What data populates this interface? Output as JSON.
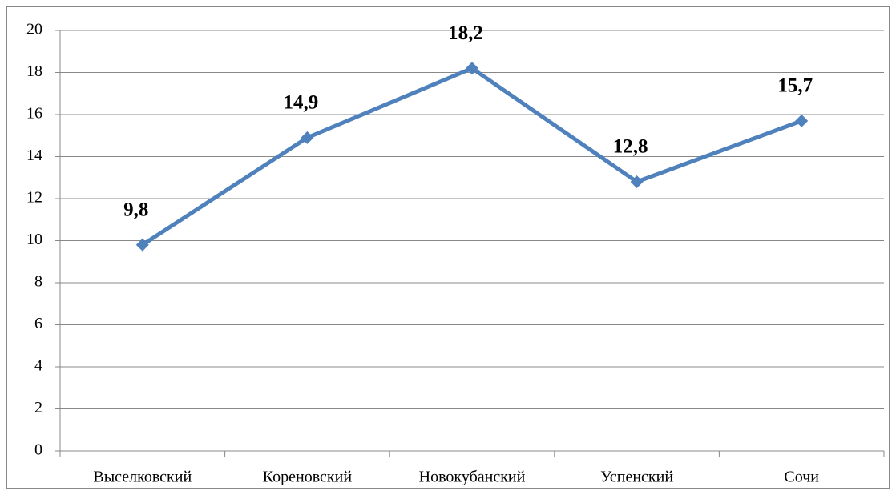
{
  "chart_data": {
    "type": "line",
    "categories": [
      "Выселковский",
      "Кореновский",
      "Новокубанский",
      "Успенский",
      "Сочи"
    ],
    "series": [
      {
        "color": "#4f81bd",
        "values": [
          9.8,
          14.9,
          18.2,
          12.8,
          15.7
        ],
        "value_labels": [
          "9,8",
          "14,9",
          "18,2",
          "12,8",
          "15,7"
        ]
      }
    ],
    "ylim": [
      0,
      20
    ],
    "yticks": [
      0,
      2,
      4,
      6,
      8,
      10,
      12,
      14,
      16,
      18,
      20
    ],
    "grid": true
  }
}
